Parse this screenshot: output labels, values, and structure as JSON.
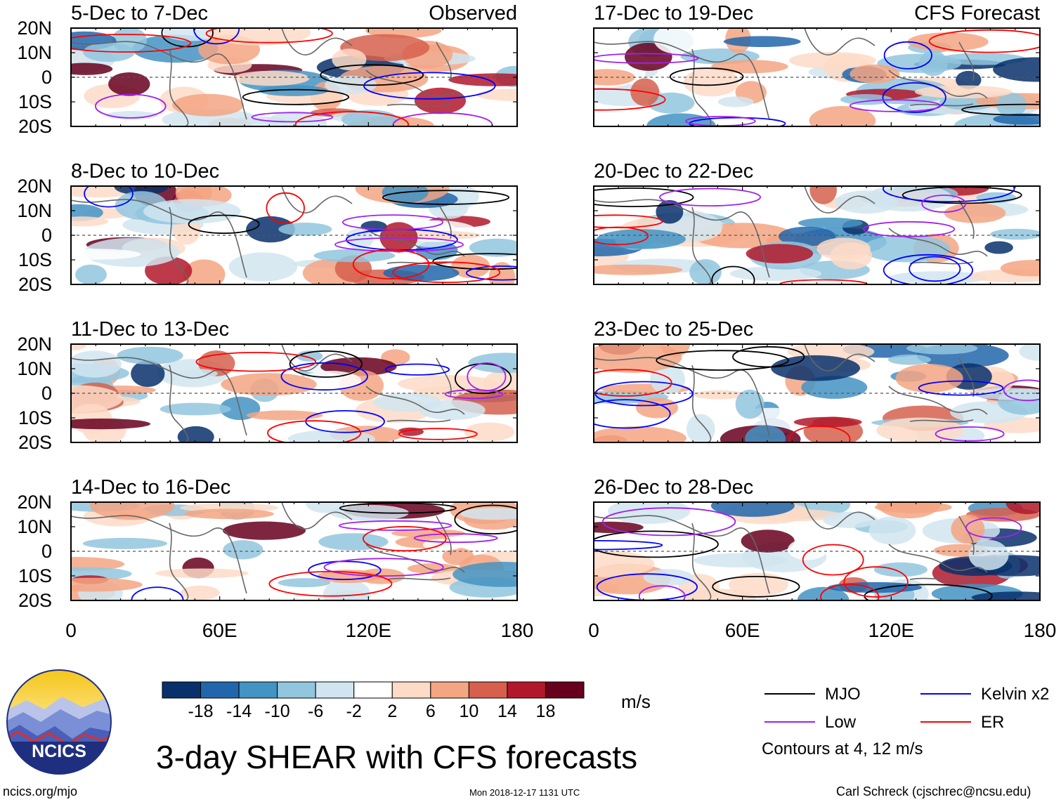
{
  "chart_data": {
    "type": "heatmap",
    "title": "3-day SHEAR with CFS forecasts",
    "units": "m/s",
    "xlim": [
      0,
      180
    ],
    "ylim": [
      -20,
      20
    ],
    "x_tick_labels": [
      "0",
      "60E",
      "120E",
      "180"
    ],
    "y_tick_labels": [
      "20N",
      "10N",
      "0",
      "10S",
      "20S"
    ],
    "panels": [
      {
        "title": "5-Dec to 7-Dec",
        "label": "Observed",
        "source": "observed"
      },
      {
        "title": "8-Dec to 10-Dec",
        "label": "",
        "source": "observed"
      },
      {
        "title": "11-Dec to 13-Dec",
        "label": "",
        "source": "observed"
      },
      {
        "title": "14-Dec to 16-Dec",
        "label": "",
        "source": "observed"
      },
      {
        "title": "17-Dec to 19-Dec",
        "label": "CFS Forecast",
        "source": "forecast"
      },
      {
        "title": "20-Dec to 22-Dec",
        "label": "",
        "source": "forecast"
      },
      {
        "title": "23-Dec to 25-Dec",
        "label": "",
        "source": "forecast"
      },
      {
        "title": "26-Dec to 28-Dec",
        "label": "",
        "source": "forecast"
      }
    ],
    "colorbar": {
      "ticks": [
        "-18",
        "-14",
        "-10",
        "-6",
        "-2",
        "2",
        "6",
        "10",
        "14",
        "18"
      ],
      "colors": [
        "#08306b",
        "#2166ac",
        "#4393c3",
        "#92c5de",
        "#d1e5f0",
        "#ffffff",
        "#fddbc7",
        "#f4a582",
        "#d6604d",
        "#b2182b",
        "#67001f"
      ]
    },
    "legend": [
      {
        "label": "MJO",
        "color": "#000000"
      },
      {
        "label": "Kelvin x2",
        "color": "#0000ff"
      },
      {
        "label": "Low",
        "color": "#a020f0"
      },
      {
        "label": "ER",
        "color": "#ff0000"
      }
    ],
    "contour_note": "Contours at 4, 12 m/s"
  },
  "footer": {
    "logo_text": "NCICS",
    "url": "ncics.org/mjo",
    "timestamp": "Mon 2018-12-17 1131 UTC",
    "author": "Carl Schreck (cjschrec@ncsu.edu)"
  }
}
